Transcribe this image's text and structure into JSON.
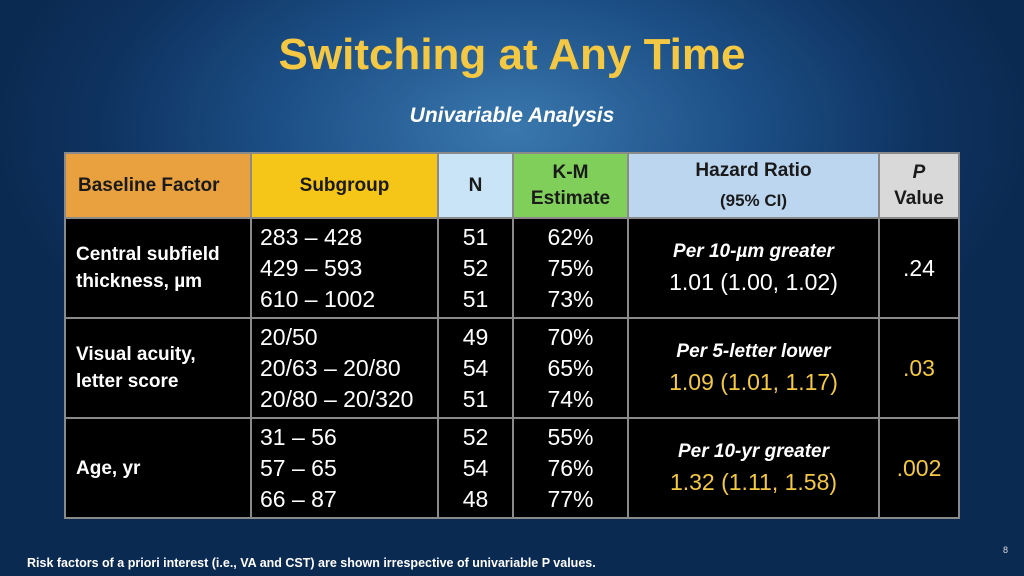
{
  "slide": {
    "title": "Switching at Any Time",
    "subtitle": "Univariable Analysis",
    "footnote": "Risk factors of a priori interest (i.e., VA and CST) are shown irrespective of univariable P values.",
    "page_number": "8"
  },
  "table": {
    "headers": {
      "factor": "Baseline Factor",
      "subgroup": "Subgroup",
      "n": "N",
      "km_line1": "K-M",
      "km_line2": "Estimate",
      "hr_line1": "Hazard Ratio",
      "hr_line2": "(95% CI)",
      "p_line1": "P",
      "p_line2": "Value"
    },
    "rows": [
      {
        "factor_line1": "Central subfield",
        "factor_line2": "thickness, µm",
        "subgroups": [
          "283 – 428",
          "429 – 593",
          "610 – 1002"
        ],
        "n": [
          "51",
          "52",
          "51"
        ],
        "km": [
          "62%",
          "75%",
          "73%"
        ],
        "hr_label": "Per 10-µm greater",
        "hr_value": "1.01 (1.00, 1.02)",
        "p": ".24",
        "highlight": false
      },
      {
        "factor_line1": "Visual acuity,",
        "factor_line2": "letter score",
        "subgroups": [
          "20/50",
          "20/63 – 20/80",
          "20/80 – 20/320"
        ],
        "n": [
          "49",
          "54",
          "51"
        ],
        "km": [
          "70%",
          "65%",
          "74%"
        ],
        "hr_label": "Per 5-letter lower",
        "hr_value": "1.09 (1.01, 1.17)",
        "p": ".03",
        "highlight": true
      },
      {
        "factor_line1": "Age, yr",
        "factor_line2": "",
        "subgroups": [
          "31 – 56",
          "57 – 65",
          "66 – 87"
        ],
        "n": [
          "52",
          "54",
          "48"
        ],
        "km": [
          "55%",
          "76%",
          "77%"
        ],
        "hr_label": "Per 10-yr greater",
        "hr_value": "1.32 (1.11, 1.58)",
        "p": ".002",
        "highlight": true
      }
    ]
  },
  "colors": {
    "title": "#f4c842",
    "highlight": "#f4c842",
    "header_factor": "#e8a13e",
    "header_subgroup": "#f5c518",
    "header_n": "#c9e3f7",
    "header_km": "#7fcf5a",
    "header_hr": "#bcd6f0",
    "header_p": "#d9d9d9"
  }
}
